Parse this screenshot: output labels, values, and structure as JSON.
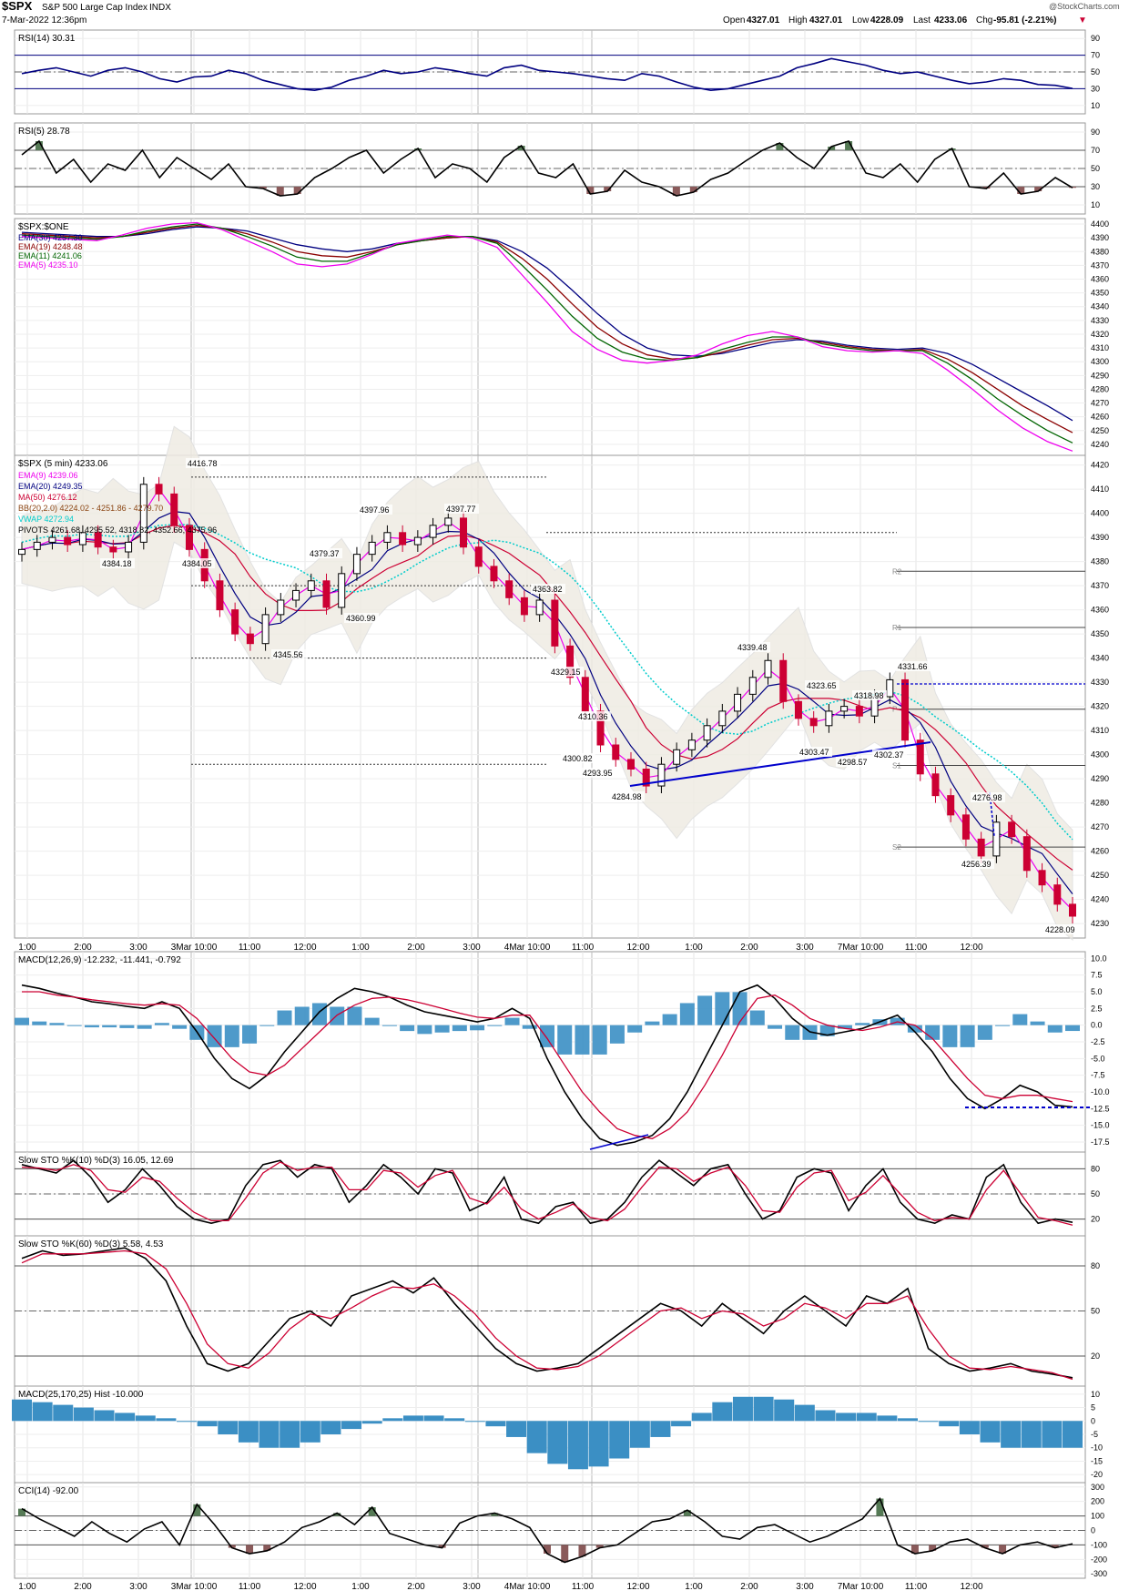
{
  "header": {
    "symbol": "$SPX",
    "name": "S&P 500 Large Cap Index",
    "exchange": "INDX",
    "date": "7-Mar-2022 12:36pm",
    "watermark": "@StockCharts.com",
    "open_label": "Open",
    "open": "4327.01",
    "high_label": "High",
    "high": "4327.01",
    "low_label": "Low",
    "low": "4228.09",
    "last_label": "Last",
    "last": "4233.06",
    "chg_label": "Chg",
    "chg": "-95.81 (-2.21%)"
  },
  "colors": {
    "up": "#000000",
    "down": "#cc0033",
    "ema30": "#000080",
    "ema19": "#8b0000",
    "ema11": "#006400",
    "ema5": "#ee00ee",
    "ema20": "#000080",
    "ma50": "#cc0033",
    "vwap": "#00cccc",
    "hist": "#3b8fc4",
    "cci_pos": "#557a55",
    "cci_neg": "#8a5a5a",
    "trendline": "#0000cc"
  },
  "x_axis_labels": [
    "1:00",
    "2:00",
    "3:00",
    "3Mar 10:00",
    "11:00",
    "12:00",
    "1:00",
    "2:00",
    "3:00",
    "4Mar 10:00",
    "11:00",
    "12:00",
    "1:00",
    "2:00",
    "3:00",
    "7Mar 10:00",
    "11:00",
    "12:00"
  ],
  "chart_data": [
    {
      "type": "line",
      "panel": "rsi14",
      "title": "RSI(14) 30.31",
      "y_ticks": [
        "90",
        "70",
        "50",
        "30",
        "10"
      ],
      "ylim": [
        0,
        100
      ],
      "series": [
        {
          "name": "RSI(14)",
          "values": [
            48,
            52,
            55,
            50,
            45,
            52,
            55,
            50,
            42,
            38,
            44,
            45,
            52,
            48,
            40,
            35,
            30,
            28,
            32,
            40,
            45,
            52,
            48,
            50,
            55,
            52,
            48,
            45,
            55,
            58,
            52,
            50,
            48,
            45,
            42,
            40,
            48,
            45,
            38,
            32,
            28,
            30,
            35,
            40,
            45,
            55,
            60,
            66,
            62,
            58,
            52,
            48,
            50,
            45,
            40,
            36,
            38,
            42,
            40,
            35,
            34,
            30.31
          ]
        }
      ]
    },
    {
      "type": "line",
      "panel": "rsi5",
      "title": "RSI(5) 28.78",
      "y_ticks": [
        "90",
        "70",
        "50",
        "30",
        "10"
      ],
      "ylim": [
        0,
        100
      ],
      "series": [
        {
          "name": "RSI(5)",
          "values": [
            65,
            80,
            45,
            60,
            35,
            55,
            48,
            70,
            40,
            62,
            50,
            38,
            55,
            30,
            28,
            20,
            22,
            40,
            50,
            62,
            70,
            45,
            60,
            72,
            40,
            55,
            50,
            35,
            62,
            75,
            45,
            40,
            55,
            22,
            25,
            48,
            35,
            30,
            20,
            24,
            38,
            45,
            58,
            70,
            78,
            62,
            50,
            74,
            80,
            45,
            40,
            55,
            35,
            60,
            72,
            30,
            28,
            45,
            22,
            25,
            40,
            28.78
          ]
        }
      ]
    },
    {
      "type": "line",
      "panel": "ema",
      "title": "$SPX:$ONE",
      "y_ticks": [
        "4400",
        "4390",
        "4380",
        "4370",
        "4360",
        "4350",
        "4340",
        "4330",
        "4320",
        "4310",
        "4300",
        "4290",
        "4280",
        "4270",
        "4260",
        "4250",
        "4240"
      ],
      "ylim": [
        4232,
        4404
      ],
      "series": [
        {
          "name": "EMA(30) 4257.30",
          "values": [
            4394,
            4393,
            4392,
            4391,
            4391,
            4393,
            4396,
            4398,
            4397,
            4395,
            4390,
            4385,
            4382,
            4380,
            4382,
            4386,
            4388,
            4390,
            4391,
            4388,
            4380,
            4368,
            4352,
            4335,
            4320,
            4310,
            4305,
            4304,
            4306,
            4310,
            4314,
            4316,
            4315,
            4312,
            4310,
            4309,
            4310,
            4306,
            4298,
            4288,
            4278,
            4268,
            4257.3
          ]
        },
        {
          "name": "EMA(19) 4248.48",
          "values": [
            4393,
            4392,
            4391,
            4390,
            4391,
            4394,
            4397,
            4399,
            4397,
            4393,
            4387,
            4380,
            4377,
            4376,
            4380,
            4385,
            4388,
            4390,
            4391,
            4387,
            4375,
            4360,
            4342,
            4325,
            4313,
            4305,
            4302,
            4303,
            4307,
            4312,
            4316,
            4317,
            4314,
            4311,
            4309,
            4308,
            4309,
            4302,
            4292,
            4280,
            4268,
            4258,
            4248.48
          ]
        },
        {
          "name": "EMA(11) 4241.06",
          "values": [
            4392,
            4391,
            4390,
            4389,
            4391,
            4395,
            4398,
            4400,
            4397,
            4391,
            4384,
            4376,
            4373,
            4373,
            4379,
            4385,
            4388,
            4391,
            4391,
            4386,
            4370,
            4352,
            4333,
            4317,
            4307,
            4302,
            4301,
            4303,
            4309,
            4314,
            4318,
            4318,
            4313,
            4310,
            4308,
            4308,
            4308,
            4299,
            4287,
            4273,
            4261,
            4250,
            4241.06
          ]
        },
        {
          "name": "EMA(5) 4235.10",
          "values": [
            4391,
            4390,
            4389,
            4388,
            4392,
            4397,
            4400,
            4401,
            4396,
            4388,
            4380,
            4371,
            4369,
            4371,
            4378,
            4386,
            4389,
            4392,
            4390,
            4383,
            4363,
            4343,
            4322,
            4309,
            4301,
            4299,
            4301,
            4305,
            4313,
            4319,
            4322,
            4318,
            4311,
            4308,
            4307,
            4308,
            4306,
            4294,
            4280,
            4265,
            4252,
            4242,
            4235.1
          ]
        }
      ]
    },
    {
      "type": "candlestick",
      "panel": "price",
      "title": "$SPX (5 min) 4233.06",
      "y_ticks": [
        "4420",
        "4410",
        "4400",
        "4390",
        "4380",
        "4370",
        "4360",
        "4350",
        "4340",
        "4330",
        "4320",
        "4310",
        "4300",
        "4290",
        "4280",
        "4270",
        "4260",
        "4250",
        "4240",
        "4230"
      ],
      "ylim": [
        4224,
        4424
      ],
      "legend": [
        "EMA(9) 4239.06",
        "EMA(20) 4249.35",
        "MA(50) 4276.12",
        "BB(20,2.0) 4224.02 - 4251.86 - 4279.70",
        "VWAP 4272.94",
        "PIVOTS 4261.68, 4295.52, 4318.82, 4352.66, 4375.96"
      ],
      "pivot_labels": [
        "R2",
        "R1",
        "P",
        "S1",
        "S2"
      ],
      "annotations": [
        "4416.78",
        "4384.18",
        "4384.05",
        "4397.96",
        "4379.37",
        "4397.77",
        "4360.99",
        "4345.56",
        "4363.82",
        "4329.15",
        "4310.36",
        "4300.82",
        "4293.95",
        "4284.98",
        "4339.48",
        "4323.65",
        "4318.98",
        "4331.66",
        "4303.47",
        "4298.57",
        "4302.37",
        "4276.98",
        "4256.39",
        "4228.09"
      ],
      "x_start": 0,
      "x_end": 62,
      "closes": [
        4385,
        4388,
        4390,
        4387,
        4392,
        4386,
        4384,
        4388,
        4412,
        4408,
        4395,
        4385,
        4372,
        4360,
        4350,
        4346,
        4358,
        4364,
        4368,
        4372,
        4361,
        4375,
        4383,
        4388,
        4392,
        4387,
        4390,
        4395,
        4398,
        4386,
        4378,
        4372,
        4365,
        4358,
        4364,
        4345,
        4332,
        4318,
        4304,
        4298,
        4294,
        4287,
        4296,
        4302,
        4306,
        4312,
        4318,
        4325,
        4332,
        4339,
        4322,
        4315,
        4312,
        4318,
        4320,
        4316,
        4324,
        4331,
        4306,
        4292,
        4283,
        4275,
        4265,
        4258,
        4272,
        4266,
        4252,
        4246,
        4238,
        4233.06
      ]
    },
    {
      "type": "line",
      "panel": "macd_12_26_9",
      "title": "MACD(12,26,9) -12.232, -11.441, -0.792",
      "y_ticks": [
        "10.0",
        "7.5",
        "5.0",
        "2.5",
        "0.0",
        "-2.5",
        "-5.0",
        "-7.5",
        "-10.0",
        "-12.5",
        "-15.0",
        "-17.5"
      ],
      "ylim": [
        -19,
        11
      ],
      "series": [
        {
          "name": "MACD",
          "values": [
            6,
            5.5,
            4.8,
            4.2,
            3.5,
            3.2,
            2.8,
            2.5,
            3.5,
            2.5,
            -1,
            -5,
            -8,
            -9.5,
            -7.5,
            -4,
            -1,
            2,
            4,
            5.5,
            5,
            4.2,
            3,
            2,
            1.5,
            1,
            0.5,
            1,
            2.5,
            1,
            -5,
            -10,
            -14,
            -17,
            -18,
            -17.5,
            -16.5,
            -14,
            -10,
            -5,
            0,
            5,
            6,
            4,
            1,
            -1,
            -1.5,
            -1,
            -0.5,
            0.5,
            1.5,
            -1,
            -4,
            -8,
            -11,
            -12.5,
            -11,
            -9,
            -10,
            -12,
            -12.232
          ]
        },
        {
          "name": "Signal",
          "values": [
            5,
            5,
            4.5,
            4.2,
            3.8,
            3.5,
            3.2,
            3,
            3.2,
            3,
            1,
            -2,
            -5,
            -7,
            -7.5,
            -6,
            -3.5,
            -1,
            1.5,
            3,
            4,
            4.2,
            3.8,
            3.2,
            2.5,
            1.8,
            1.2,
            1,
            1.5,
            1.5,
            -2,
            -6,
            -10,
            -13,
            -15.5,
            -16.5,
            -17,
            -15.5,
            -13,
            -9,
            -4.5,
            0.5,
            4,
            4.5,
            3,
            1,
            0,
            -0.5,
            -0.8,
            -0.3,
            0.5,
            0,
            -2,
            -5,
            -8,
            -10.5,
            -11,
            -10.5,
            -10.5,
            -11,
            -11.441
          ]
        }
      ]
    },
    {
      "type": "line",
      "panel": "sto_10",
      "title": "Slow STO %K(10) %D(3) 16.05, 12.69",
      "y_ticks": [
        "80",
        "50",
        "20"
      ],
      "ylim": [
        0,
        100
      ],
      "series": [
        {
          "name": "%K",
          "values": [
            85,
            80,
            75,
            90,
            70,
            40,
            55,
            80,
            60,
            35,
            20,
            15,
            20,
            60,
            85,
            90,
            70,
            85,
            80,
            40,
            60,
            85,
            70,
            50,
            80,
            75,
            30,
            40,
            70,
            20,
            15,
            35,
            40,
            15,
            20,
            40,
            70,
            90,
            75,
            60,
            80,
            85,
            50,
            20,
            30,
            70,
            80,
            75,
            30,
            60,
            80,
            40,
            20,
            15,
            25,
            20,
            70,
            85,
            40,
            15,
            20,
            16.05
          ]
        },
        {
          "name": "%D",
          "values": [
            82,
            81,
            78,
            85,
            78,
            55,
            52,
            70,
            65,
            45,
            28,
            18,
            18,
            45,
            75,
            88,
            78,
            82,
            82,
            55,
            55,
            78,
            75,
            58,
            72,
            78,
            45,
            38,
            58,
            32,
            20,
            28,
            38,
            22,
            18,
            32,
            58,
            82,
            80,
            65,
            75,
            82,
            60,
            30,
            28,
            58,
            75,
            78,
            42,
            52,
            72,
            50,
            28,
            18,
            22,
            20,
            55,
            78,
            50,
            22,
            18,
            12.69
          ]
        }
      ]
    },
    {
      "type": "line",
      "panel": "sto_60",
      "title": "Slow STO %K(60) %D(3) 5.58, 4.53",
      "y_ticks": [
        "80",
        "50",
        "20"
      ],
      "ylim": [
        0,
        100
      ],
      "series": [
        {
          "name": "%K",
          "values": [
            85,
            90,
            87,
            88,
            90,
            92,
            85,
            70,
            40,
            15,
            10,
            15,
            30,
            45,
            50,
            40,
            60,
            65,
            70,
            62,
            72,
            55,
            40,
            25,
            15,
            10,
            12,
            15,
            25,
            35,
            45,
            55,
            50,
            40,
            55,
            45,
            35,
            50,
            60,
            50,
            40,
            60,
            55,
            65,
            25,
            15,
            10,
            12,
            15,
            10,
            8,
            5.58
          ]
        },
        {
          "name": "%D",
          "values": [
            82,
            88,
            88,
            88,
            89,
            90,
            88,
            78,
            55,
            28,
            15,
            12,
            22,
            38,
            48,
            45,
            52,
            60,
            66,
            65,
            68,
            60,
            48,
            32,
            20,
            12,
            11,
            13,
            20,
            30,
            40,
            50,
            52,
            45,
            50,
            48,
            40,
            45,
            55,
            52,
            45,
            55,
            55,
            60,
            38,
            20,
            12,
            11,
            13,
            11,
            9,
            4.53
          ]
        }
      ]
    },
    {
      "type": "bar",
      "panel": "macd_25_170_25",
      "title": "MACD(25,170,25) Hist -10.000",
      "y_ticks": [
        "10",
        "5",
        "0",
        "-5",
        "-10",
        "-15",
        "-20"
      ],
      "ylim": [
        -23,
        13
      ],
      "values": [
        8,
        7,
        6,
        5,
        4,
        3,
        2,
        1,
        0,
        -2,
        -5,
        -8,
        -10,
        -10,
        -8,
        -5,
        -3,
        -1,
        1,
        2,
        2,
        1,
        0,
        -2,
        -6,
        -12,
        -16,
        -18,
        -17,
        -14,
        -10,
        -6,
        -2,
        3,
        7,
        9,
        9,
        8,
        6,
        4,
        3,
        3,
        2,
        1,
        0,
        -2,
        -5,
        -8,
        -10,
        -10,
        -10,
        -10
      ]
    },
    {
      "type": "line",
      "panel": "cci",
      "title": "CCI(14) -92.00",
      "y_ticks": [
        "300",
        "200",
        "100",
        "0",
        "-100",
        "-200",
        "-300"
      ],
      "ylim": [
        -330,
        330
      ],
      "series": [
        {
          "name": "CCI(14)",
          "values": [
            150,
            80,
            20,
            -40,
            60,
            -20,
            -80,
            10,
            60,
            -100,
            180,
            40,
            -120,
            -160,
            -140,
            -80,
            20,
            60,
            120,
            40,
            160,
            -20,
            -60,
            -100,
            -120,
            50,
            100,
            120,
            80,
            20,
            -160,
            -220,
            -180,
            -120,
            -100,
            -20,
            60,
            80,
            140,
            60,
            -40,
            -60,
            20,
            40,
            -20,
            -80,
            -40,
            20,
            80,
            220,
            -100,
            -160,
            -140,
            -80,
            -60,
            -120,
            -160,
            -100,
            -80,
            -120,
            -92
          ]
        }
      ]
    }
  ]
}
